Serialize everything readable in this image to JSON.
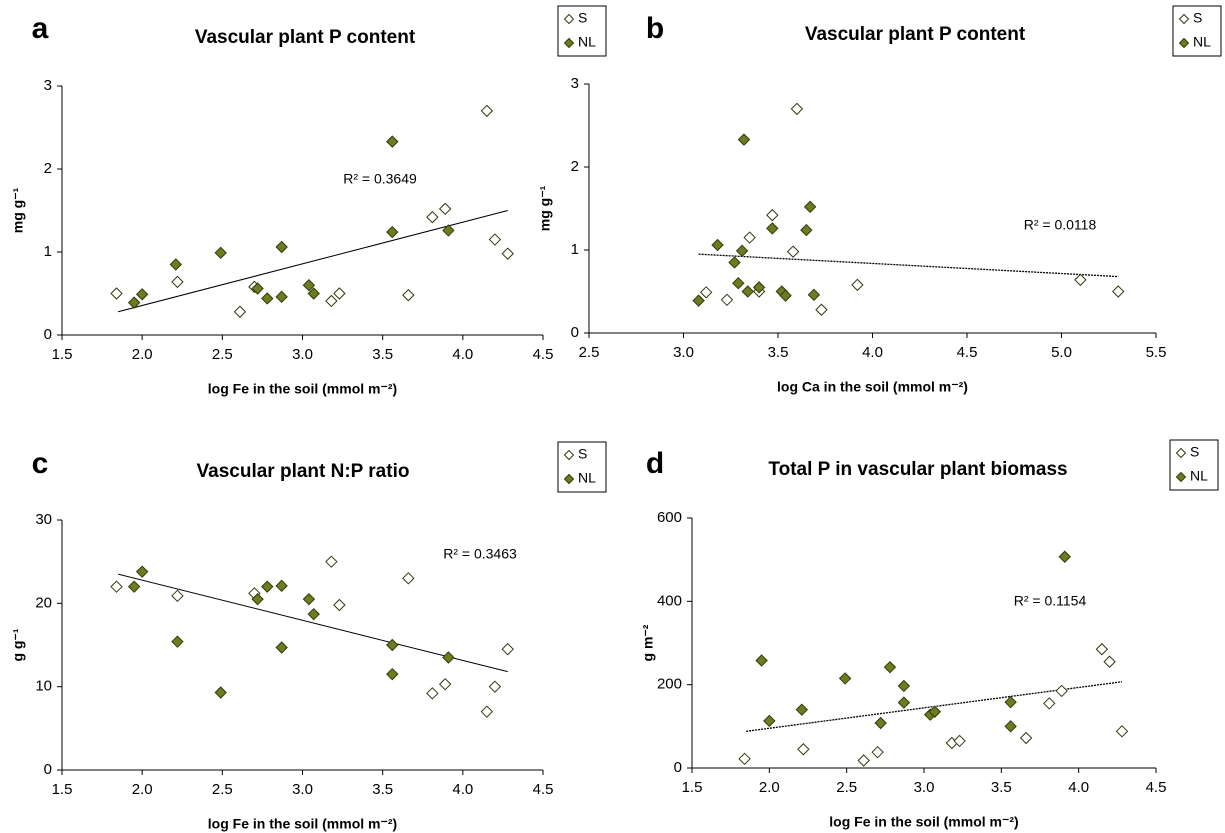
{
  "chart_data": [
    {
      "type": "scatter",
      "panel": "a",
      "title": "Vascular plant P content",
      "x_label": "log Fe in the soil (mmol m⁻²)",
      "y_label": "mg g⁻¹",
      "annotation": "R² = 0.3649",
      "xlim": [
        1.5,
        4.5
      ],
      "xticks": [
        1.5,
        {
          "value": 2,
          "label": "2.0"
        },
        2.5,
        {
          "value": 3,
          "label": "3.0"
        },
        3.5,
        {
          "value": 4,
          "label": "4.0"
        },
        4.5
      ],
      "ylim": [
        0,
        3
      ],
      "yticks": [
        0,
        1,
        2,
        3
      ],
      "legend": "outside-top-right",
      "series": [
        {
          "name": "S",
          "color": "#ffffff",
          "x": [
            1.84,
            2.22,
            2.61,
            2.7,
            3.18,
            3.23,
            3.66,
            3.81,
            3.89,
            4.15,
            4.2,
            4.28
          ],
          "values": [
            0.5,
            0.64,
            0.28,
            0.58,
            0.41,
            0.5,
            0.48,
            1.42,
            1.52,
            2.7,
            1.15,
            0.98
          ]
        },
        {
          "name": "NL",
          "color": "#6b7d1f",
          "x": [
            1.95,
            2.0,
            2.21,
            2.49,
            2.72,
            2.78,
            2.87,
            2.87,
            3.04,
            3.07,
            3.56,
            3.56,
            3.91
          ],
          "values": [
            0.39,
            0.49,
            0.85,
            0.99,
            0.56,
            0.44,
            1.06,
            0.46,
            0.6,
            0.5,
            2.33,
            1.24,
            1.26
          ]
        }
      ],
      "trendline": {
        "x": [
          1.85,
          4.28
        ],
        "values": [
          0.28,
          1.5
        ],
        "style": "solid"
      }
    },
    {
      "type": "scatter",
      "panel": "b",
      "title": "Vascular plant P content",
      "x_label": "log Ca in the soil (mmol m⁻²)",
      "y_label": "mg g⁻¹",
      "annotation": "R² = 0.0118",
      "xlim": [
        2.5,
        5.5
      ],
      "xticks": [
        2.5,
        {
          "value": 3,
          "label": "3.0"
        },
        3.5,
        {
          "value": 4,
          "label": "4.0"
        },
        4.5,
        {
          "value": 5,
          "label": "5.0"
        },
        5.5
      ],
      "ylim": [
        0,
        3
      ],
      "yticks": [
        0,
        1,
        2,
        3
      ],
      "legend": "outside-top-right",
      "series": [
        {
          "name": "S",
          "color": "#ffffff",
          "x": [
            3.12,
            3.23,
            3.35,
            3.4,
            3.47,
            3.58,
            3.6,
            3.73,
            3.92,
            5.1,
            5.3
          ],
          "values": [
            0.49,
            0.4,
            1.15,
            0.5,
            1.42,
            0.98,
            2.7,
            0.28,
            0.58,
            0.64,
            0.5
          ]
        },
        {
          "name": "NL",
          "color": "#6b7d1f",
          "x": [
            3.08,
            3.18,
            3.27,
            3.29,
            3.31,
            3.32,
            3.34,
            3.4,
            3.47,
            3.52,
            3.54,
            3.65,
            3.67,
            3.69
          ],
          "values": [
            0.39,
            1.06,
            0.85,
            0.6,
            0.99,
            2.33,
            0.5,
            0.55,
            1.26,
            0.5,
            0.45,
            1.24,
            1.52,
            0.46
          ]
        }
      ],
      "trendline": {
        "x": [
          3.08,
          5.3
        ],
        "values": [
          0.95,
          0.68
        ],
        "style": "dotted"
      }
    },
    {
      "type": "scatter",
      "panel": "c",
      "title": "Vascular plant N:P ratio",
      "x_label": "log Fe in the soil (mmol m⁻²)",
      "y_label": "g g⁻¹",
      "annotation": "R² = 0.3463",
      "xlim": [
        1.5,
        4.5
      ],
      "xticks": [
        1.5,
        {
          "value": 2,
          "label": "2.0"
        },
        2.5,
        {
          "value": 3,
          "label": "3.0"
        },
        3.5,
        {
          "value": 4,
          "label": "4.0"
        },
        4.5
      ],
      "ylim": [
        0,
        30
      ],
      "yticks": [
        0,
        10,
        20,
        30
      ],
      "legend": "outside-top-right",
      "series": [
        {
          "name": "S",
          "color": "#ffffff",
          "x": [
            1.84,
            2.22,
            2.7,
            3.18,
            3.23,
            3.66,
            3.81,
            3.89,
            4.15,
            4.2,
            4.28
          ],
          "values": [
            22,
            20.9,
            21.2,
            25,
            19.8,
            23,
            9.2,
            10.3,
            7,
            10,
            14.5
          ]
        },
        {
          "name": "NL",
          "color": "#6b7d1f",
          "x": [
            1.95,
            2.0,
            2.22,
            2.49,
            2.72,
            2.78,
            2.87,
            2.87,
            3.04,
            3.07,
            3.56,
            3.56,
            3.91
          ],
          "values": [
            22,
            23.8,
            15.4,
            9.3,
            20.5,
            22,
            22.1,
            14.7,
            20.5,
            18.7,
            15,
            11.5,
            13.5
          ]
        }
      ],
      "trendline": {
        "x": [
          1.85,
          4.28
        ],
        "values": [
          23.5,
          11.8
        ],
        "style": "solid"
      }
    },
    {
      "type": "scatter",
      "panel": "d",
      "title": "Total P in vascular plant biomass",
      "x_label": "log Fe in the soil (mmol m⁻²)",
      "y_label": "g m⁻²",
      "annotation": "R² = 0.1154",
      "xlim": [
        1.5,
        4.5
      ],
      "xticks": [
        1.5,
        {
          "value": 2,
          "label": "2.0"
        },
        2.5,
        {
          "value": 3,
          "label": "3.0"
        },
        3.5,
        {
          "value": 4,
          "label": "4.0"
        },
        4.5
      ],
      "ylim": [
        0,
        600
      ],
      "yticks": [
        0,
        200,
        400,
        600
      ],
      "legend": "outside-top-right",
      "series": [
        {
          "name": "S",
          "color": "#ffffff",
          "x": [
            1.84,
            2.22,
            2.61,
            2.7,
            3.18,
            3.23,
            3.66,
            3.81,
            3.89,
            4.15,
            4.2,
            4.28
          ],
          "values": [
            22,
            45,
            18,
            38,
            60,
            65,
            72,
            155,
            185,
            285,
            255,
            88
          ]
        },
        {
          "name": "NL",
          "color": "#6b7d1f",
          "x": [
            1.95,
            2.0,
            2.21,
            2.49,
            2.72,
            2.78,
            2.87,
            2.87,
            3.04,
            3.07,
            3.56,
            3.56,
            3.91
          ],
          "values": [
            258,
            113,
            140,
            215,
            108,
            242,
            197,
            157,
            128,
            135,
            100,
            158,
            507
          ]
        }
      ],
      "trendline": {
        "x": [
          1.85,
          4.28
        ],
        "values": [
          88,
          207
        ],
        "style": "dotted"
      }
    }
  ]
}
